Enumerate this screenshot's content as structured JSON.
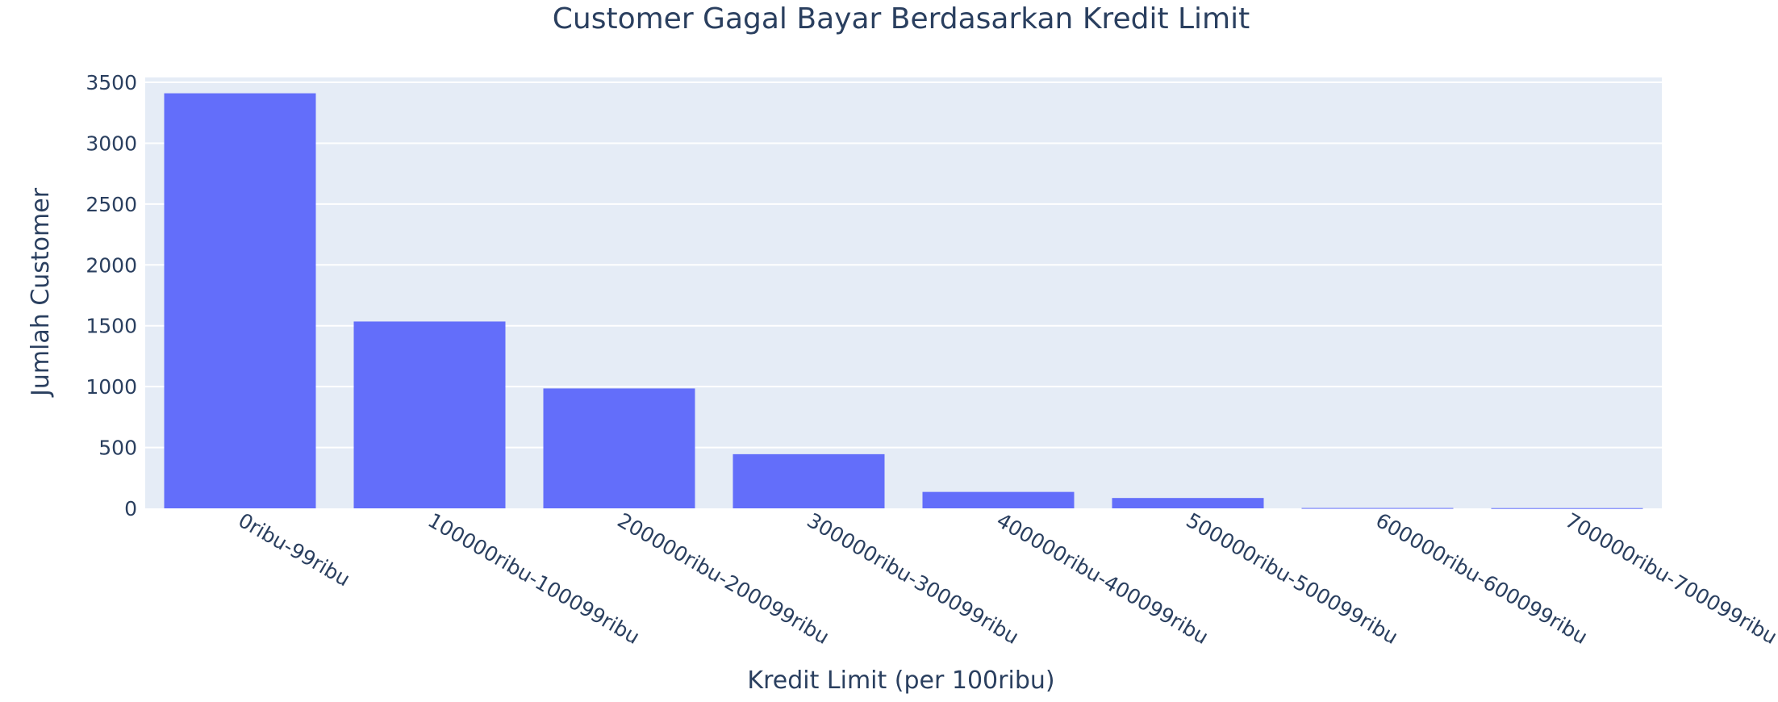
{
  "chart_data": {
    "type": "bar",
    "title": "Customer Gagal Bayar Berdasarkan Kredit Limit",
    "xlabel": "Kredit Limit (per 100ribu)",
    "ylabel": "Jumlah Customer",
    "categories": [
      "0ribu-99ribu",
      "100000ribu-100099ribu",
      "200000ribu-200099ribu",
      "300000ribu-300099ribu",
      "400000ribu-400099ribu",
      "500000ribu-500099ribu",
      "600000ribu-600099ribu",
      "700000ribu-700099ribu"
    ],
    "values": [
      3410,
      1535,
      985,
      445,
      135,
      85,
      3,
      2
    ],
    "ylim": [
      0,
      3540
    ],
    "yticks": [
      0,
      500,
      1000,
      1500,
      2000,
      2500,
      3000,
      3500
    ],
    "grid": true,
    "colors": {
      "bar": "#636efa",
      "plot_bg": "#e5ecf6",
      "grid": "#ffffff",
      "text": "#2a3f5f"
    }
  }
}
